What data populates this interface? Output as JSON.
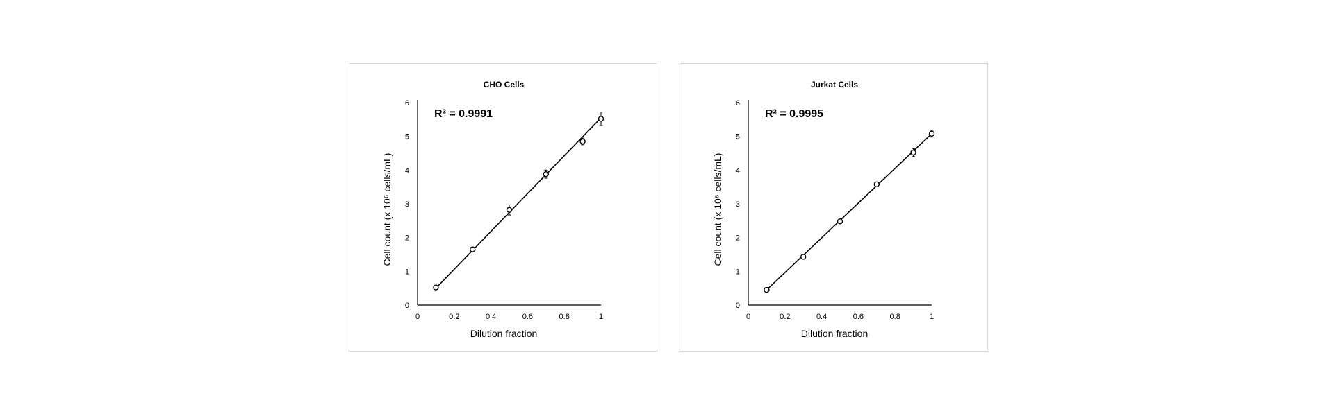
{
  "chart_data": [
    {
      "type": "scatter",
      "title": "CHO Cells",
      "xlabel": "Dilution fraction",
      "ylabel": "Cell count (x 10⁶ cells/mL)",
      "xlim": [
        0,
        1
      ],
      "ylim": [
        0,
        6
      ],
      "xticks": [
        "0",
        "0.2",
        "0.4",
        "0.6",
        "0.8",
        "1"
      ],
      "yticks": [
        "0",
        "1",
        "2",
        "3",
        "4",
        "5",
        "6"
      ],
      "x": [
        0.1,
        0.3,
        0.5,
        0.7,
        0.9,
        1.0
      ],
      "y": [
        0.52,
        1.65,
        2.82,
        3.88,
        4.85,
        5.52
      ],
      "error": [
        0.05,
        0.06,
        0.15,
        0.12,
        0.1,
        0.2
      ],
      "trendline": {
        "x": [
          0.1,
          1.0
        ],
        "y": [
          0.5,
          5.55
        ]
      },
      "annotation": "R² = 0.9991",
      "grid": false,
      "legend": "none"
    },
    {
      "type": "scatter",
      "title": "Jurkat Cells",
      "xlabel": "Dilution fraction",
      "ylabel": "Cell count (x 10⁶ cells/mL)",
      "xlim": [
        0,
        1
      ],
      "ylim": [
        0,
        6
      ],
      "xticks": [
        "0",
        "0.2",
        "0.4",
        "0.6",
        "0.8",
        "1"
      ],
      "yticks": [
        "0",
        "1",
        "2",
        "3",
        "4",
        "5",
        "6"
      ],
      "x": [
        0.1,
        0.3,
        0.5,
        0.7,
        0.9,
        1.0
      ],
      "y": [
        0.45,
        1.43,
        2.48,
        3.58,
        4.52,
        5.08
      ],
      "error": [
        0.04,
        0.07,
        0.05,
        0.05,
        0.12,
        0.1
      ],
      "trendline": {
        "x": [
          0.1,
          1.0
        ],
        "y": [
          0.45,
          5.08
        ]
      },
      "annotation": "R² = 0.9995",
      "grid": false,
      "legend": "none"
    }
  ]
}
